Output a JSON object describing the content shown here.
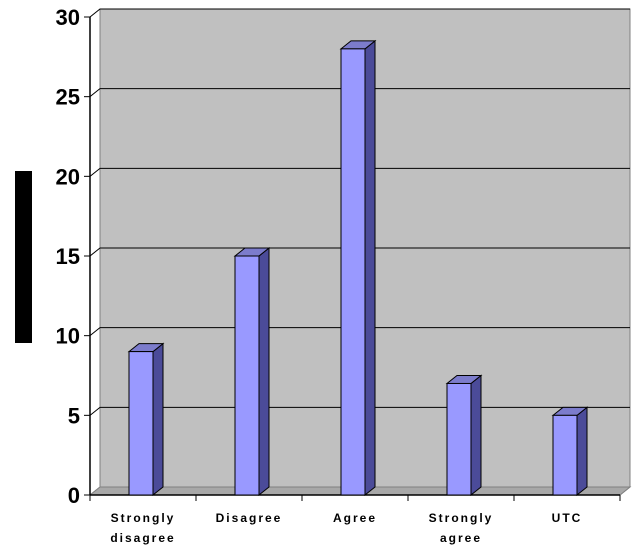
{
  "chart_data": {
    "type": "bar",
    "categories": [
      [
        "Strongly",
        "disagree"
      ],
      [
        "Disagree"
      ],
      [
        "Agree"
      ],
      [
        "Strongly",
        "agree"
      ],
      [
        "UTC"
      ]
    ],
    "values": [
      9,
      15,
      28,
      7,
      5
    ],
    "yticks": [
      "0",
      "5",
      "10",
      "15",
      "20",
      "25",
      "30"
    ],
    "ylim": [
      0,
      30
    ],
    "grid": true,
    "title": "",
    "xlabel": "",
    "ylabel": ""
  },
  "colors": {
    "plot_background": "#c0c0c0",
    "bar_front": "#9999ff",
    "bar_side": "#4b4b99",
    "bar_top": "#7c7ccc",
    "gridline": "#000000",
    "ylabel_block": "#000000"
  }
}
